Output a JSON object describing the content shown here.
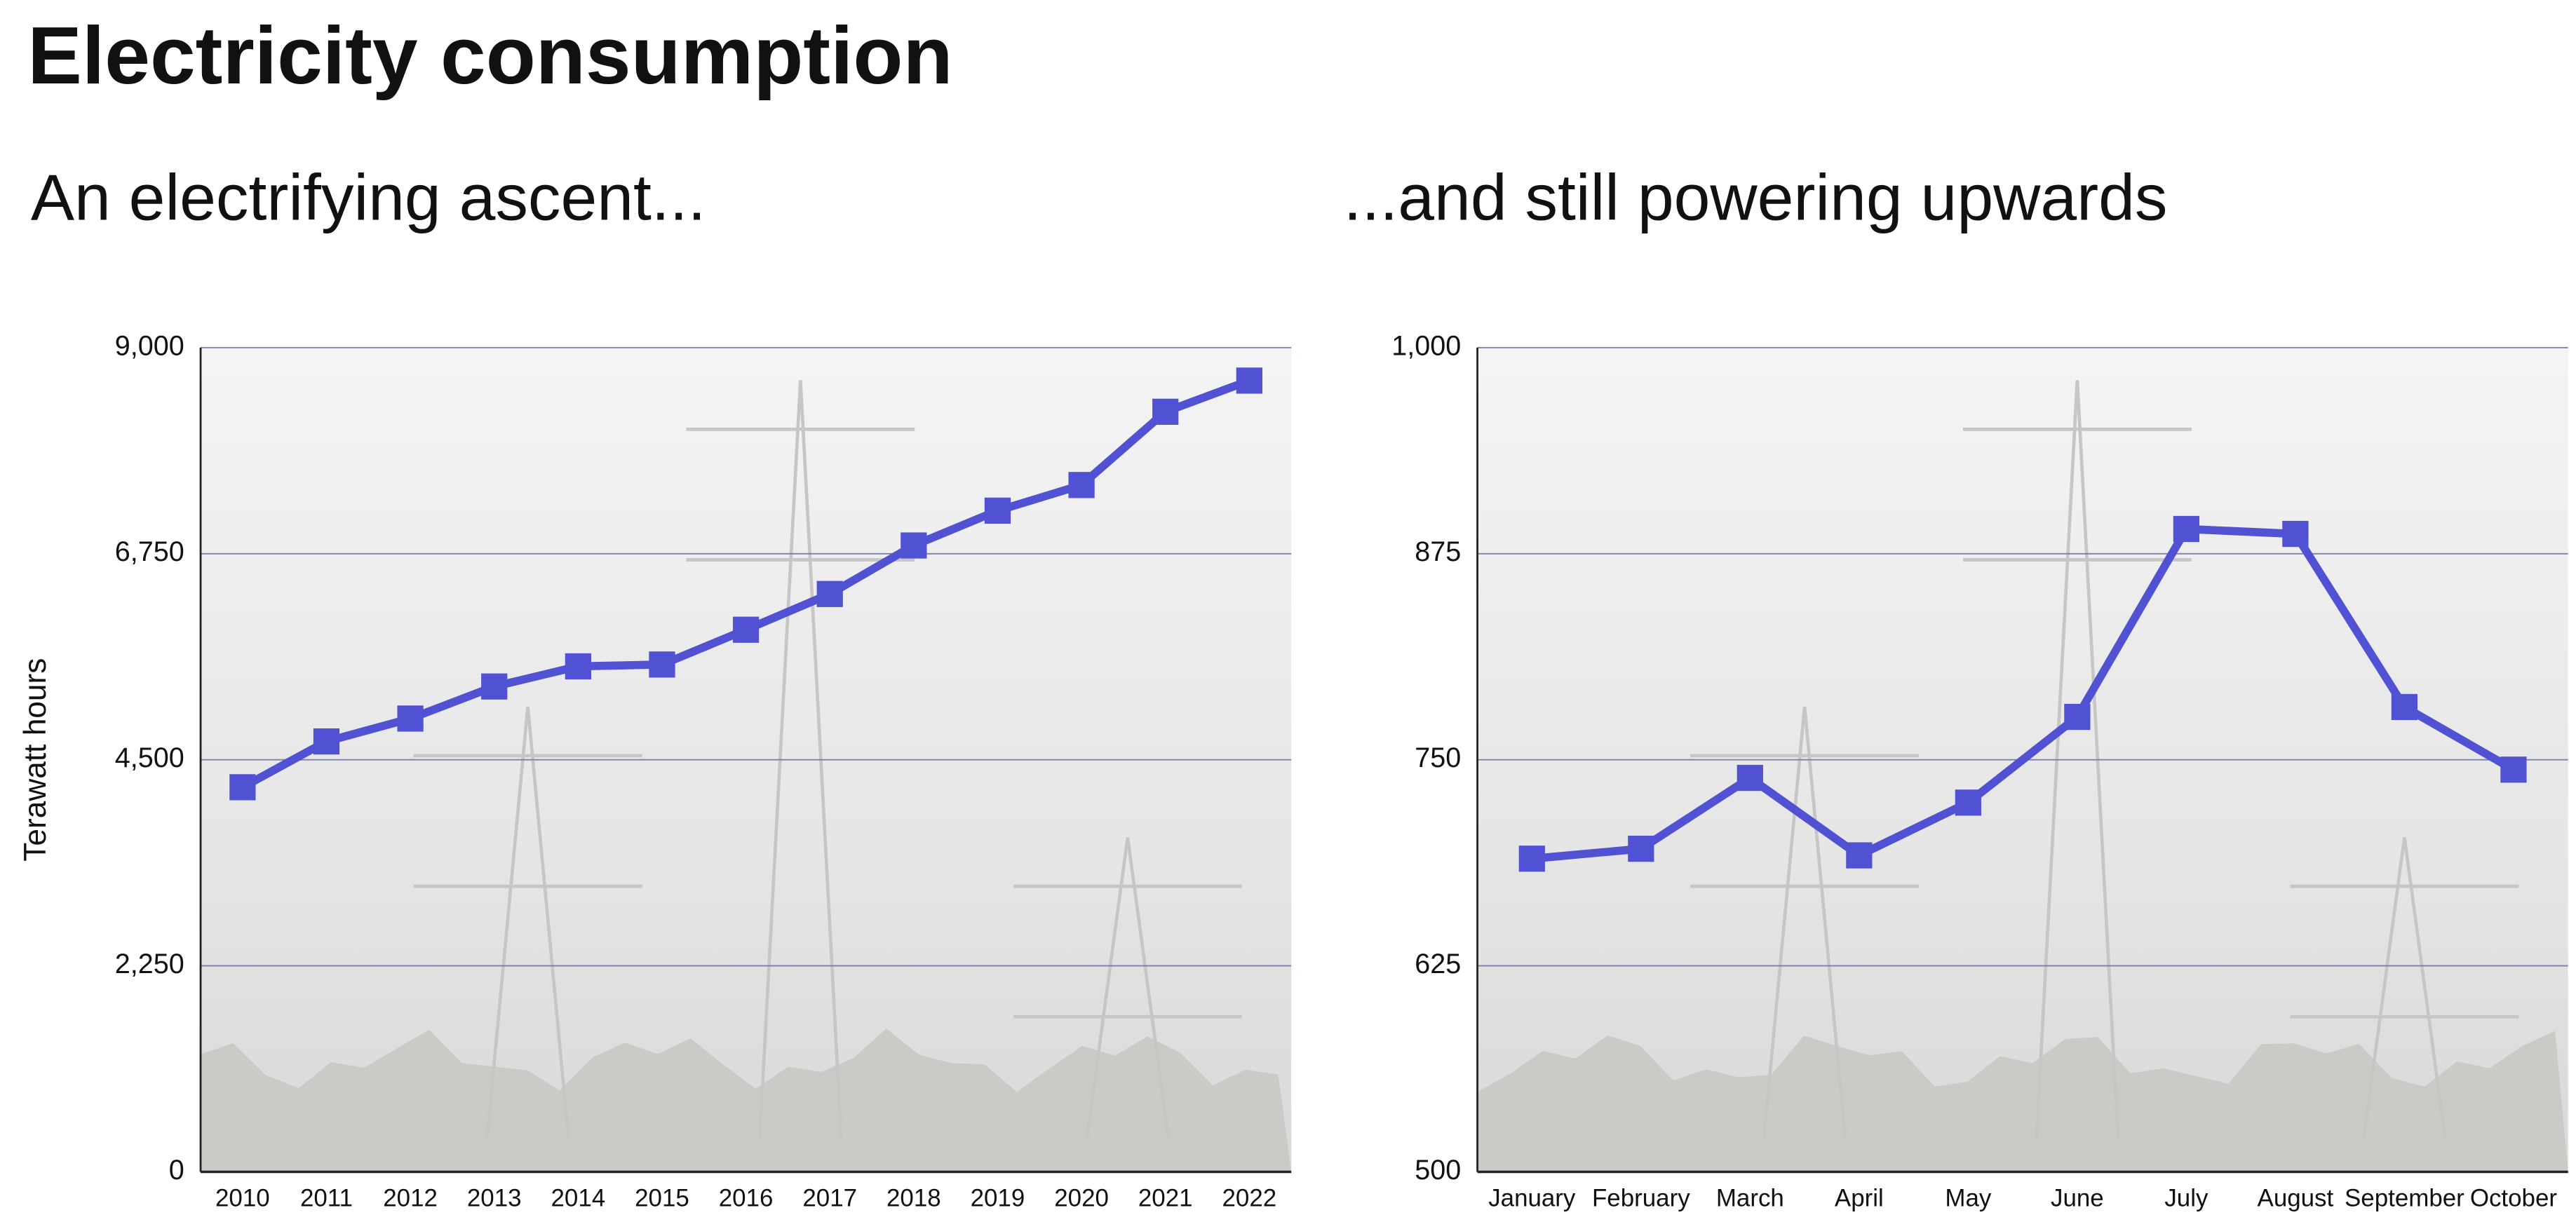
{
  "title": "Electricity consumption",
  "chart_data": [
    {
      "type": "line",
      "subtitle": "An electrifying ascent...",
      "y_label": "Terawatt hours",
      "categories": [
        "2010",
        "2011",
        "2012",
        "2013",
        "2014",
        "2015",
        "2016",
        "2017",
        "2018",
        "2019",
        "2020",
        "2021",
        "2022"
      ],
      "values": [
        4200,
        4700,
        4950,
        5300,
        5520,
        5540,
        5920,
        6310,
        6840,
        7220,
        7500,
        8300,
        8640
      ],
      "color": "#5151d3",
      "ylim": [
        0,
        9000
      ],
      "yticks": [
        0,
        {
          "value": 2250,
          "label": "2,250"
        },
        {
          "value": 4500,
          "label": "4,500"
        },
        {
          "value": 6750,
          "label": "6,750"
        },
        {
          "value": 9000,
          "label": "9,000"
        }
      ],
      "grid": true
    },
    {
      "type": "line",
      "subtitle": "...and still powering upwards",
      "categories": [
        "January",
        "February",
        "March",
        "April",
        "May",
        "June",
        "July",
        "August",
        "September",
        "October"
      ],
      "values": [
        690,
        696,
        739,
        692,
        724,
        776,
        890,
        887,
        782,
        744
      ],
      "color": "#5151d3",
      "ylim": [
        500,
        1000
      ],
      "yticks": [
        500,
        625,
        750,
        875,
        {
          "value": 1000,
          "label": "1,000"
        }
      ],
      "grid": true
    }
  ]
}
